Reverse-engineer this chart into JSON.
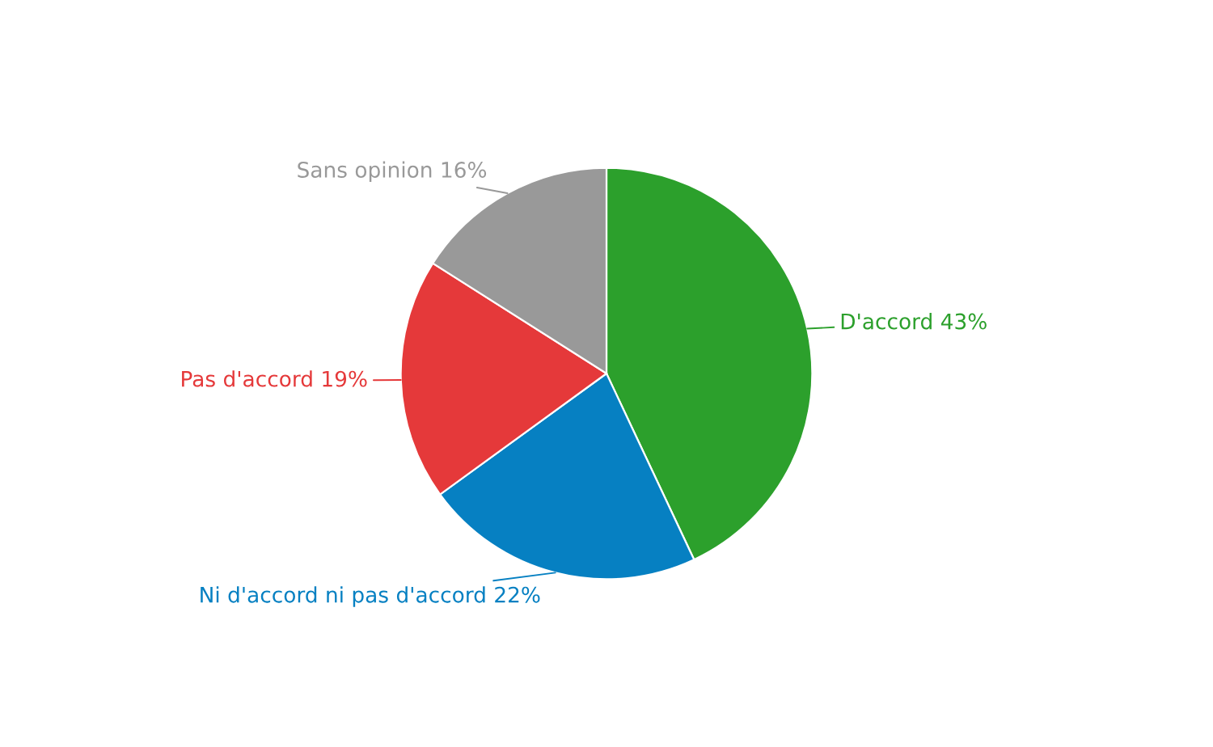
{
  "chart_data": {
    "type": "pie",
    "categories": [
      "D'accord",
      "Ni d'accord ni pas d'accord",
      "Pas d'accord",
      "Sans opinion"
    ],
    "values": [
      43,
      22,
      19,
      16
    ],
    "colors": [
      "#2ca02c",
      "#0680c2",
      "#e5393a",
      "#999999"
    ],
    "value_labels": [
      "43%",
      "22%",
      "19%",
      "16%"
    ],
    "legend": false
  }
}
